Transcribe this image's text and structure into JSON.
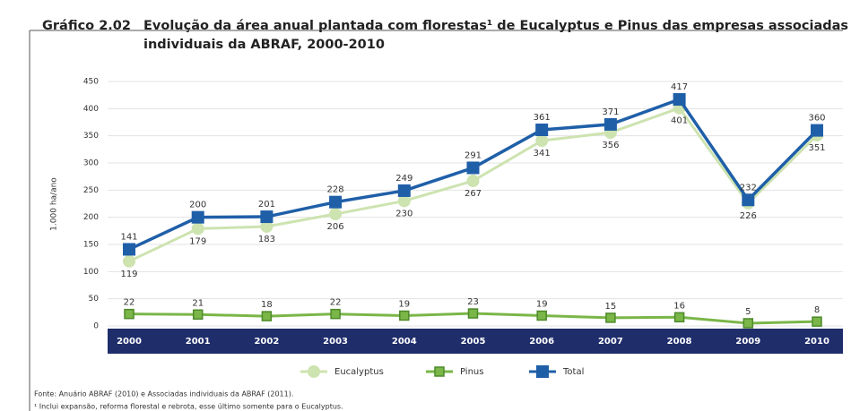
{
  "chart_data": {
    "type": "line",
    "title_label": "Gráfico 2.02",
    "title": [
      "Evolução da área anual plantada com florestas¹ de Eucalyptus e Pinus das empresas associadas",
      "individuais da ABRAF, 2000-2010"
    ],
    "y_label": "1.000 ha/ano",
    "categories": [
      "2000",
      "2001",
      "2002",
      "2003",
      "2004",
      "2005",
      "2006",
      "2007",
      "2008",
      "2009",
      "2010"
    ],
    "series": [
      {
        "name": "Eucalyptus",
        "color": "#cde3b0",
        "values": [
          119,
          179,
          183,
          206,
          230,
          267,
          341,
          356,
          401,
          226,
          351
        ]
      },
      {
        "name": "Pinus",
        "color": "#7ab648",
        "values": [
          22,
          21,
          18,
          22,
          19,
          23,
          19,
          15,
          16,
          5,
          8
        ]
      },
      {
        "name": "Total",
        "color": "#1f5fa8",
        "values": [
          141,
          200,
          201,
          228,
          249,
          291,
          361,
          371,
          417,
          232,
          360
        ]
      }
    ],
    "ylim": [
      0,
      450
    ],
    "yticks": [
      0,
      50,
      100,
      150,
      200,
      250,
      300,
      350,
      400,
      450
    ],
    "grid": true,
    "notes": [
      "Fonte: Anuário ABRAF (2010) e Associadas individuais da ABRAF (2011).",
      "¹ Inclui expansão, reforma florestal e rebrota, esse último somente para o Eucalyptus."
    ]
  }
}
